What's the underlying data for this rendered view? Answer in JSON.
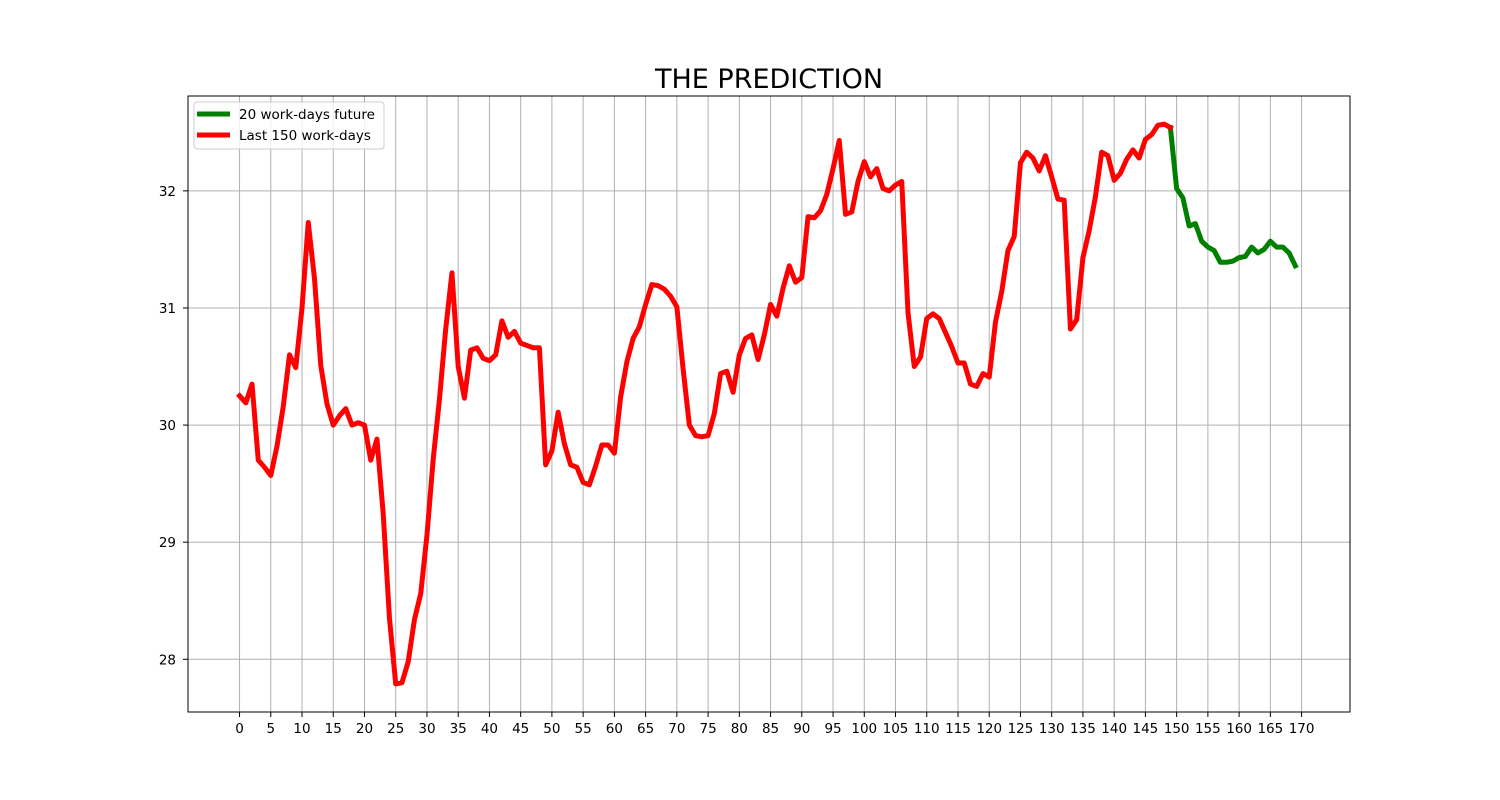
{
  "chart_data": {
    "type": "line",
    "title": "THE PREDICTION",
    "xlabel": "",
    "ylabel": "",
    "xlim": [
      -8.25,
      177.75
    ],
    "ylim": [
      27.55,
      32.81
    ],
    "grid": true,
    "legend_position": "top-left",
    "x_ticks": [
      0,
      5,
      10,
      15,
      20,
      25,
      30,
      35,
      40,
      45,
      50,
      55,
      60,
      65,
      70,
      75,
      80,
      85,
      90,
      95,
      100,
      105,
      110,
      115,
      120,
      125,
      130,
      135,
      140,
      145,
      150,
      155,
      160,
      165,
      170
    ],
    "y_ticks": [
      28,
      29,
      30,
      31,
      32
    ],
    "legend": [
      {
        "label": "20 work-days future",
        "color": "#008000"
      },
      {
        "label": "Last 150 work-days",
        "color": "#ff0000"
      }
    ],
    "series": [
      {
        "name": "20 work-days future",
        "color": "#008000",
        "x": [
          149,
          150,
          151,
          152,
          153,
          154,
          155,
          156,
          157,
          158,
          159,
          160,
          161,
          162,
          163,
          164,
          165,
          166,
          167,
          168,
          169
        ],
        "values": [
          32.54,
          32.02,
          31.94,
          31.7,
          31.72,
          31.57,
          31.52,
          31.49,
          31.39,
          31.39,
          31.4,
          31.43,
          31.44,
          31.52,
          31.47,
          31.5,
          31.57,
          31.52,
          31.52,
          31.47,
          31.36
        ]
      },
      {
        "name": "Last 150 work-days",
        "color": "#ff0000",
        "x": [
          0,
          1,
          2,
          3,
          4,
          5,
          6,
          7,
          8,
          9,
          10,
          11,
          12,
          13,
          14,
          15,
          16,
          17,
          18,
          19,
          20,
          21,
          22,
          23,
          24,
          25,
          26,
          27,
          28,
          29,
          30,
          31,
          32,
          33,
          34,
          35,
          36,
          37,
          38,
          39,
          40,
          41,
          42,
          43,
          44,
          45,
          46,
          47,
          48,
          49,
          50,
          51,
          52,
          53,
          54,
          55,
          56,
          57,
          58,
          59,
          60,
          61,
          62,
          63,
          64,
          65,
          66,
          67,
          68,
          69,
          70,
          71,
          72,
          73,
          74,
          75,
          76,
          77,
          78,
          79,
          80,
          81,
          82,
          83,
          84,
          85,
          86,
          87,
          88,
          89,
          90,
          91,
          92,
          93,
          94,
          95,
          96,
          97,
          98,
          99,
          100,
          101,
          102,
          103,
          104,
          105,
          106,
          107,
          108,
          109,
          110,
          111,
          112,
          113,
          114,
          115,
          116,
          117,
          118,
          119,
          120,
          121,
          122,
          123,
          124,
          125,
          126,
          127,
          128,
          129,
          130,
          131,
          132,
          133,
          134,
          135,
          136,
          137,
          138,
          139,
          140,
          141,
          142,
          143,
          144,
          145,
          146,
          147,
          148,
          149
        ],
        "values": [
          30.25,
          30.19,
          30.35,
          29.7,
          29.64,
          29.57,
          29.82,
          30.16,
          30.6,
          30.49,
          31.0,
          31.73,
          31.25,
          30.51,
          30.18,
          30.0,
          30.08,
          30.14,
          30.0,
          30.02,
          30.0,
          29.7,
          29.88,
          29.24,
          28.35,
          27.79,
          27.8,
          27.98,
          28.34,
          28.56,
          29.06,
          29.71,
          30.22,
          30.82,
          31.3,
          30.5,
          30.23,
          30.64,
          30.66,
          30.57,
          30.55,
          30.6,
          30.89,
          30.75,
          30.8,
          30.7,
          30.68,
          30.66,
          30.66,
          29.66,
          29.78,
          30.11,
          29.84,
          29.66,
          29.64,
          29.51,
          29.49,
          29.65,
          29.83,
          29.83,
          29.76,
          30.24,
          30.54,
          30.74,
          30.84,
          31.03,
          31.2,
          31.19,
          31.16,
          31.1,
          31.01,
          30.48,
          30.0,
          29.91,
          29.9,
          29.91,
          30.1,
          30.44,
          30.46,
          30.28,
          30.6,
          30.74,
          30.77,
          30.56,
          30.77,
          31.03,
          30.93,
          31.17,
          31.36,
          31.22,
          31.26,
          31.78,
          31.77,
          31.83,
          31.97,
          32.19,
          32.43,
          31.8,
          31.82,
          32.08,
          32.25,
          32.12,
          32.19,
          32.02,
          32.0,
          32.05,
          32.08,
          30.96,
          30.5,
          30.58,
          30.91,
          30.95,
          30.91,
          30.79,
          30.67,
          30.53,
          30.53,
          30.35,
          30.33,
          30.44,
          30.41,
          30.88,
          31.14,
          31.49,
          31.61,
          32.24,
          32.33,
          32.28,
          32.17,
          32.3,
          32.12,
          31.93,
          31.92,
          30.82,
          30.9,
          31.43,
          31.66,
          31.95,
          32.33,
          32.3,
          32.09,
          32.15,
          32.27,
          32.35,
          32.28,
          32.44,
          32.48,
          32.56,
          32.57,
          32.54
        ]
      }
    ]
  }
}
